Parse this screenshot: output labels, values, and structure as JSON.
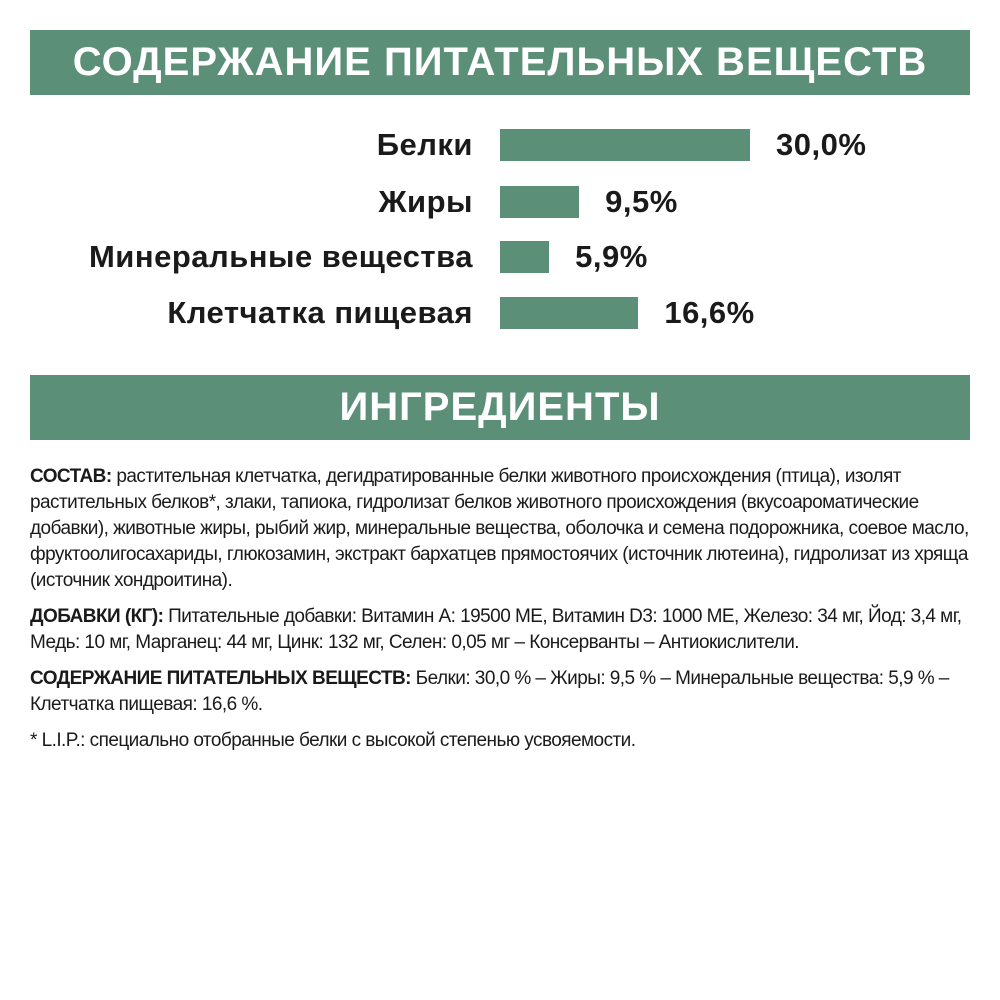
{
  "header_nutrients": "СОДЕРЖАНИЕ ПИТАТЕЛЬНЫХ ВЕЩЕСТВ",
  "header_ingredients": "ИНГРЕДИЕНТЫ",
  "colors": {
    "accent": "#5c8f78",
    "text": "#1a1a1a"
  },
  "chart_data": {
    "type": "bar",
    "orientation": "horizontal",
    "categories": [
      "Белки",
      "Жиры",
      "Минеральные вещества",
      "Клетчатка пищевая"
    ],
    "values": [
      30.0,
      9.5,
      5.9,
      16.6
    ],
    "value_labels": [
      "30,0%",
      "9,5%",
      "5,9%",
      "16,6%"
    ],
    "unit": "%",
    "grid": false
  },
  "composition": {
    "label": "СОСТАВ:",
    "text": " растительная клетчатка, дегидратированные белки животного происхождения (птица), изолят растительных белков*, злаки, тапиока, гидролизат белков животного происхождения (вкусоароматические добавки), животные жиры, рыбий жир, минеральные вещества, оболочка и семена подорожника, соевое масло, фруктоолигосахариды, глюкозамин, экстракт бархатцев прямостоячих (источник лютеина), гидролизат из хряща (источник хондроитина)."
  },
  "additives": {
    "label": "ДОБАВКИ (КГ):",
    "text": " Питательные добавки: Витамин А: 19500 МЕ, Витамин D3: 1000 МЕ, Железо: 34 мг, Йод: 3,4 мг, Медь: 10 мг, Марганец: 44 мг, Цинк: 132 мг, Селен: 0,05 мг – Консерванты – Антиокислители."
  },
  "nutrients": {
    "label": "СОДЕРЖАНИЕ ПИТАТЕЛЬНЫХ ВЕЩЕСТВ:",
    "text": " Белки: 30,0 % – Жиры: 9,5 % – Минеральные вещества: 5,9 % – Клетчатка пищевая: 16,6 %."
  },
  "footnote": "* L.I.P.: специально отобранные белки с высокой степенью усвояемости."
}
